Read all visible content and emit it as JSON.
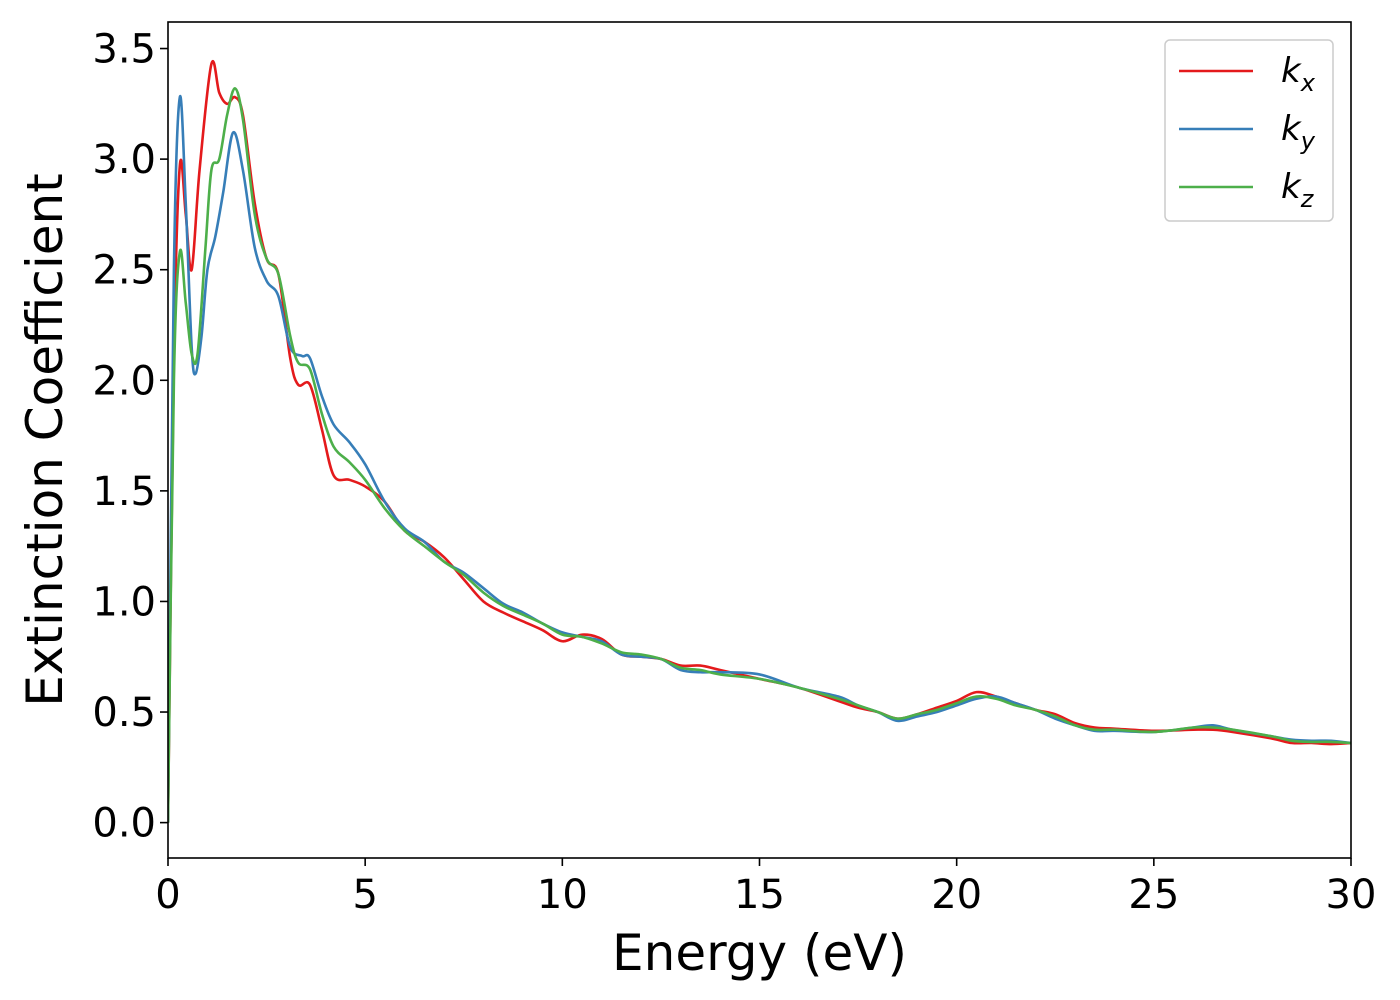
{
  "chart_data": {
    "type": "line",
    "xlabel": "Energy (eV)",
    "ylabel": "Extinction Coefficient",
    "xlim": [
      0,
      30
    ],
    "ylim": [
      -0.16,
      3.62
    ],
    "xticks": [
      0,
      5,
      10,
      15,
      20,
      25,
      30
    ],
    "xtick_labels": [
      "0",
      "5",
      "10",
      "15",
      "20",
      "25",
      "30"
    ],
    "yticks": [
      0.0,
      0.5,
      1.0,
      1.5,
      2.0,
      2.5,
      3.0,
      3.5
    ],
    "ytick_labels": [
      "0.0",
      "0.5",
      "1.0",
      "1.5",
      "2.0",
      "2.5",
      "3.0",
      "3.5"
    ],
    "grid": false,
    "legend_position": "top-right",
    "series": [
      {
        "name": "k",
        "subscript": "x",
        "color": "#e41a1c",
        "points": [
          [
            0,
            0
          ],
          [
            0.15,
            2.1
          ],
          [
            0.3,
            2.97
          ],
          [
            0.45,
            2.75
          ],
          [
            0.6,
            2.5
          ],
          [
            0.8,
            2.95
          ],
          [
            1.1,
            3.43
          ],
          [
            1.3,
            3.3
          ],
          [
            1.5,
            3.25
          ],
          [
            1.7,
            3.28
          ],
          [
            1.9,
            3.2
          ],
          [
            2.2,
            2.8
          ],
          [
            2.5,
            2.55
          ],
          [
            2.8,
            2.48
          ],
          [
            3.1,
            2.1
          ],
          [
            3.3,
            1.98
          ],
          [
            3.6,
            1.98
          ],
          [
            3.9,
            1.78
          ],
          [
            4.2,
            1.57
          ],
          [
            4.6,
            1.55
          ],
          [
            5.0,
            1.52
          ],
          [
            5.5,
            1.45
          ],
          [
            6.0,
            1.32
          ],
          [
            6.5,
            1.27
          ],
          [
            7.0,
            1.2
          ],
          [
            7.5,
            1.1
          ],
          [
            8.0,
            1.0
          ],
          [
            8.5,
            0.95
          ],
          [
            9.0,
            0.91
          ],
          [
            9.5,
            0.87
          ],
          [
            10.0,
            0.82
          ],
          [
            10.5,
            0.85
          ],
          [
            11.0,
            0.83
          ],
          [
            11.5,
            0.76
          ],
          [
            12.0,
            0.75
          ],
          [
            12.5,
            0.74
          ],
          [
            13.0,
            0.71
          ],
          [
            13.5,
            0.71
          ],
          [
            14.0,
            0.69
          ],
          [
            15.0,
            0.65
          ],
          [
            16.0,
            0.61
          ],
          [
            17.0,
            0.55
          ],
          [
            17.5,
            0.52
          ],
          [
            18.0,
            0.5
          ],
          [
            18.5,
            0.47
          ],
          [
            19.0,
            0.49
          ],
          [
            19.5,
            0.52
          ],
          [
            20.0,
            0.55
          ],
          [
            20.5,
            0.59
          ],
          [
            21.0,
            0.57
          ],
          [
            21.5,
            0.54
          ],
          [
            22.0,
            0.51
          ],
          [
            22.5,
            0.49
          ],
          [
            23.0,
            0.45
          ],
          [
            23.5,
            0.43
          ],
          [
            24.0,
            0.425
          ],
          [
            25.0,
            0.415
          ],
          [
            26.0,
            0.42
          ],
          [
            26.5,
            0.42
          ],
          [
            27.0,
            0.41
          ],
          [
            28.0,
            0.38
          ],
          [
            28.5,
            0.36
          ],
          [
            29.0,
            0.36
          ],
          [
            29.5,
            0.355
          ],
          [
            30.0,
            0.36
          ]
        ]
      },
      {
        "name": "k",
        "subscript": "y",
        "color": "#377eb8",
        "points": [
          [
            0,
            0
          ],
          [
            0.15,
            2.5
          ],
          [
            0.3,
            3.28
          ],
          [
            0.45,
            2.8
          ],
          [
            0.6,
            2.15
          ],
          [
            0.7,
            2.03
          ],
          [
            0.85,
            2.2
          ],
          [
            1.0,
            2.5
          ],
          [
            1.2,
            2.65
          ],
          [
            1.4,
            2.85
          ],
          [
            1.65,
            3.12
          ],
          [
            1.9,
            2.95
          ],
          [
            2.2,
            2.6
          ],
          [
            2.5,
            2.45
          ],
          [
            2.8,
            2.38
          ],
          [
            3.1,
            2.15
          ],
          [
            3.4,
            2.11
          ],
          [
            3.6,
            2.1
          ],
          [
            3.9,
            1.93
          ],
          [
            4.2,
            1.8
          ],
          [
            4.6,
            1.72
          ],
          [
            5.0,
            1.62
          ],
          [
            5.5,
            1.45
          ],
          [
            6.0,
            1.33
          ],
          [
            6.5,
            1.27
          ],
          [
            7.0,
            1.18
          ],
          [
            7.5,
            1.13
          ],
          [
            8.0,
            1.06
          ],
          [
            8.5,
            0.99
          ],
          [
            9.0,
            0.95
          ],
          [
            9.5,
            0.9
          ],
          [
            10.0,
            0.86
          ],
          [
            10.5,
            0.84
          ],
          [
            11.0,
            0.82
          ],
          [
            11.5,
            0.76
          ],
          [
            12.0,
            0.75
          ],
          [
            12.5,
            0.74
          ],
          [
            13.0,
            0.69
          ],
          [
            13.5,
            0.68
          ],
          [
            14.0,
            0.68
          ],
          [
            15.0,
            0.67
          ],
          [
            16.0,
            0.61
          ],
          [
            17.0,
            0.57
          ],
          [
            17.5,
            0.53
          ],
          [
            18.0,
            0.5
          ],
          [
            18.5,
            0.46
          ],
          [
            19.0,
            0.48
          ],
          [
            19.5,
            0.5
          ],
          [
            20.0,
            0.53
          ],
          [
            20.5,
            0.56
          ],
          [
            21.0,
            0.57
          ],
          [
            21.5,
            0.54
          ],
          [
            22.0,
            0.51
          ],
          [
            22.5,
            0.47
          ],
          [
            23.0,
            0.44
          ],
          [
            23.5,
            0.415
          ],
          [
            24.0,
            0.415
          ],
          [
            25.0,
            0.41
          ],
          [
            26.0,
            0.43
          ],
          [
            26.5,
            0.44
          ],
          [
            27.0,
            0.42
          ],
          [
            28.0,
            0.39
          ],
          [
            28.5,
            0.375
          ],
          [
            29.0,
            0.37
          ],
          [
            29.5,
            0.37
          ],
          [
            30.0,
            0.36
          ]
        ]
      },
      {
        "name": "k",
        "subscript": "z",
        "color": "#4daf4a",
        "points": [
          [
            0,
            0
          ],
          [
            0.15,
            2.0
          ],
          [
            0.3,
            2.58
          ],
          [
            0.45,
            2.35
          ],
          [
            0.6,
            2.12
          ],
          [
            0.75,
            2.12
          ],
          [
            0.95,
            2.6
          ],
          [
            1.1,
            2.95
          ],
          [
            1.3,
            3.0
          ],
          [
            1.5,
            3.2
          ],
          [
            1.7,
            3.32
          ],
          [
            1.9,
            3.18
          ],
          [
            2.2,
            2.75
          ],
          [
            2.5,
            2.55
          ],
          [
            2.8,
            2.48
          ],
          [
            3.1,
            2.2
          ],
          [
            3.3,
            2.08
          ],
          [
            3.6,
            2.05
          ],
          [
            3.9,
            1.85
          ],
          [
            4.2,
            1.7
          ],
          [
            4.6,
            1.63
          ],
          [
            5.0,
            1.55
          ],
          [
            5.5,
            1.42
          ],
          [
            6.0,
            1.32
          ],
          [
            6.5,
            1.25
          ],
          [
            7.0,
            1.18
          ],
          [
            7.5,
            1.12
          ],
          [
            8.0,
            1.04
          ],
          [
            8.5,
            0.98
          ],
          [
            9.0,
            0.94
          ],
          [
            9.5,
            0.9
          ],
          [
            10.0,
            0.85
          ],
          [
            10.5,
            0.84
          ],
          [
            11.0,
            0.81
          ],
          [
            11.5,
            0.77
          ],
          [
            12.0,
            0.76
          ],
          [
            12.5,
            0.74
          ],
          [
            13.0,
            0.7
          ],
          [
            13.5,
            0.69
          ],
          [
            14.0,
            0.67
          ],
          [
            15.0,
            0.65
          ],
          [
            16.0,
            0.61
          ],
          [
            17.0,
            0.56
          ],
          [
            17.5,
            0.53
          ],
          [
            18.0,
            0.5
          ],
          [
            18.5,
            0.47
          ],
          [
            19.0,
            0.49
          ],
          [
            19.5,
            0.51
          ],
          [
            20.0,
            0.54
          ],
          [
            20.5,
            0.57
          ],
          [
            21.0,
            0.56
          ],
          [
            21.5,
            0.53
          ],
          [
            22.0,
            0.51
          ],
          [
            22.5,
            0.48
          ],
          [
            23.0,
            0.44
          ],
          [
            23.5,
            0.42
          ],
          [
            24.0,
            0.42
          ],
          [
            25.0,
            0.41
          ],
          [
            26.0,
            0.43
          ],
          [
            26.5,
            0.43
          ],
          [
            27.0,
            0.42
          ],
          [
            28.0,
            0.39
          ],
          [
            28.5,
            0.37
          ],
          [
            29.0,
            0.365
          ],
          [
            29.5,
            0.365
          ],
          [
            30.0,
            0.36
          ]
        ]
      }
    ]
  }
}
